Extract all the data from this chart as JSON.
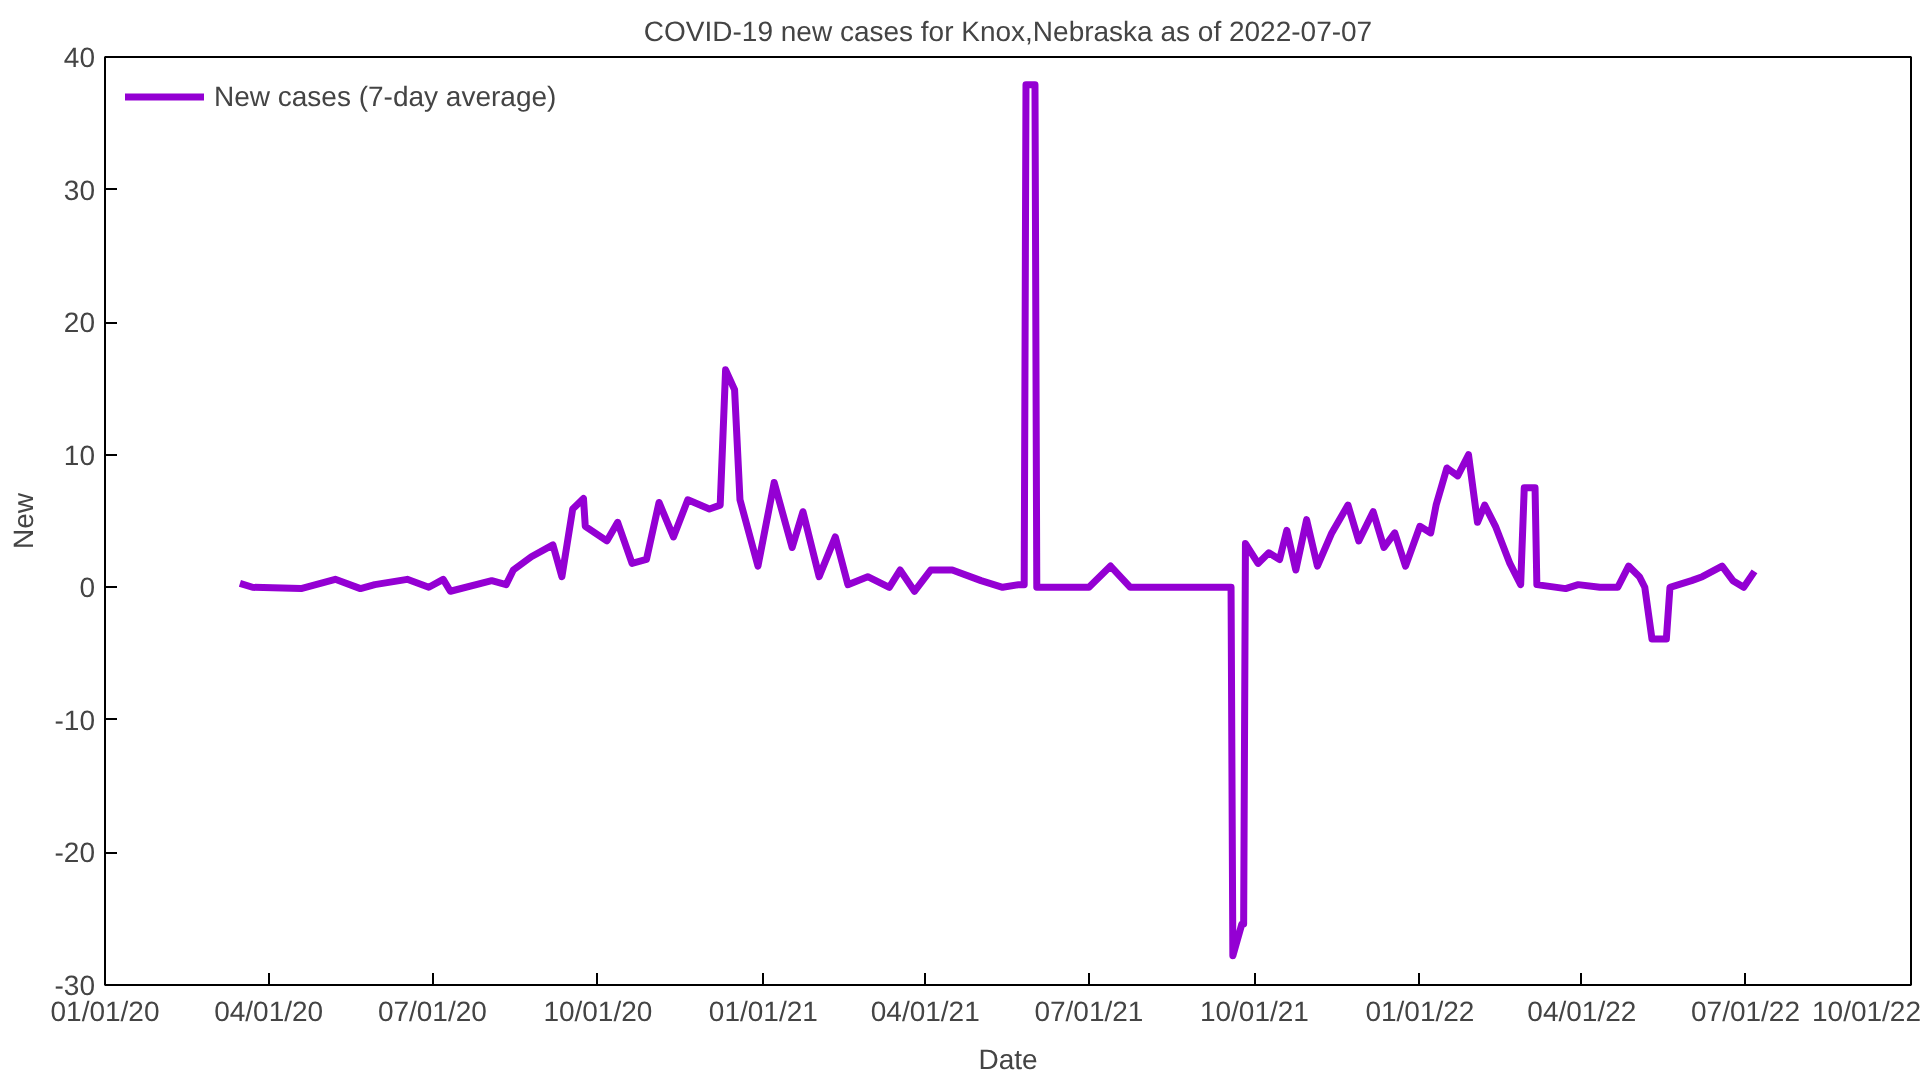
{
  "chart_data": {
    "type": "line",
    "title": "COVID-19 new cases for Knox,Nebraska as of 2022-07-07",
    "xlabel": "Date",
    "ylabel": "New",
    "xlim": [
      "2020-01-01",
      "2022-10-01"
    ],
    "ylim": [
      -30,
      40
    ],
    "xticks": [
      {
        "value": "2020-01-01",
        "label": "01/01/20"
      },
      {
        "value": "2020-04-01",
        "label": "04/01/20"
      },
      {
        "value": "2020-07-01",
        "label": "07/01/20"
      },
      {
        "value": "2020-10-01",
        "label": "10/01/20"
      },
      {
        "value": "2021-01-01",
        "label": "01/01/21"
      },
      {
        "value": "2021-04-01",
        "label": "04/01/21"
      },
      {
        "value": "2021-07-01",
        "label": "07/01/21"
      },
      {
        "value": "2021-10-01",
        "label": "10/01/21"
      },
      {
        "value": "2022-01-01",
        "label": "01/01/22"
      },
      {
        "value": "2022-04-01",
        "label": "04/01/22"
      },
      {
        "value": "2022-07-01",
        "label": "07/01/22"
      },
      {
        "value": "2022-10-01",
        "label": "10/01/22"
      }
    ],
    "yticks": [
      -30,
      -20,
      -10,
      0,
      10,
      20,
      30,
      40
    ],
    "grid": false,
    "legend": "top left",
    "marker": "none",
    "line_style": "solid",
    "x": [
      "2020-03-16",
      "2020-03-23",
      "2020-04-19",
      "2020-05-08",
      "2020-05-22",
      "2020-05-30",
      "2020-06-17",
      "2020-06-29",
      "2020-07-07",
      "2020-07-11",
      "2020-08-03",
      "2020-08-11",
      "2020-08-15",
      "2020-08-25",
      "2020-09-06",
      "2020-09-11",
      "2020-09-17",
      "2020-09-23",
      "2020-09-24",
      "2020-10-06",
      "2020-10-12",
      "2020-10-20",
      "2020-10-28",
      "2020-11-04",
      "2020-11-12",
      "2020-11-20",
      "2020-12-02",
      "2020-12-08",
      "2020-12-11",
      "2020-12-16",
      "2020-12-19",
      "2020-12-29",
      "2021-01-07",
      "2021-01-17",
      "2021-01-23",
      "2021-02-01",
      "2021-02-10",
      "2021-02-17",
      "2021-02-28",
      "2021-03-12",
      "2021-03-18",
      "2021-03-26",
      "2021-04-04",
      "2021-04-16",
      "2021-05-02",
      "2021-05-14",
      "2021-05-23",
      "2021-05-26",
      "2021-05-27",
      "2021-06-01",
      "2021-06-02",
      "2021-07-01",
      "2021-07-13",
      "2021-07-24",
      "2021-09-18",
      "2021-09-19",
      "2021-09-24",
      "2021-09-25",
      "2021-09-26",
      "2021-10-03",
      "2021-10-09",
      "2021-10-15",
      "2021-10-19",
      "2021-10-24",
      "2021-10-30",
      "2021-11-05",
      "2021-11-13",
      "2021-11-22",
      "2021-11-28",
      "2021-12-06",
      "2021-12-12",
      "2021-12-18",
      "2021-12-24",
      "2022-01-01",
      "2022-01-07",
      "2022-01-10",
      "2022-01-16",
      "2022-01-22",
      "2022-01-28",
      "2022-02-02",
      "2022-02-06",
      "2022-02-12",
      "2022-02-20",
      "2022-02-26",
      "2022-02-28",
      "2022-03-06",
      "2022-03-07",
      "2022-03-23",
      "2022-03-30",
      "2022-04-11",
      "2022-04-21",
      "2022-04-27",
      "2022-05-03",
      "2022-05-06",
      "2022-05-10",
      "2022-05-18",
      "2022-05-20",
      "2022-06-01",
      "2022-06-07",
      "2022-06-18",
      "2022-06-24",
      "2022-06-30",
      "2022-07-06"
    ],
    "series": [
      {
        "name": "New cases (7-day average)",
        "color": "#9400d3",
        "values": [
          0.3,
          0,
          -0.1,
          0.6,
          -0.1,
          0.2,
          0.6,
          0,
          0.6,
          -0.3,
          0.5,
          0.2,
          1.3,
          2.3,
          3.2,
          0.8,
          5.9,
          6.7,
          4.6,
          3.5,
          4.9,
          1.8,
          2.1,
          6.4,
          3.8,
          6.6,
          5.9,
          6.2,
          16.4,
          14.9,
          6.6,
          1.6,
          7.9,
          3.0,
          5.7,
          0.8,
          3.8,
          0.2,
          0.8,
          0,
          1.3,
          -0.3,
          1.3,
          1.3,
          0.5,
          0,
          0.2,
          0.2,
          37.9,
          37.9,
          0,
          0,
          1.6,
          0,
          0,
          -27.8,
          -25.4,
          -25.4,
          3.3,
          1.8,
          2.6,
          2.1,
          4.3,
          1.3,
          5.1,
          1.6,
          4.1,
          6.2,
          3.5,
          5.7,
          3.0,
          4.1,
          1.6,
          4.6,
          4.1,
          6.2,
          9.0,
          8.4,
          10.0,
          4.9,
          6.2,
          4.6,
          1.8,
          0.2,
          7.5,
          7.5,
          0.2,
          -0.1,
          0.2,
          0,
          0,
          1.6,
          0.8,
          0,
          -3.9,
          -3.9,
          0,
          0.5,
          0.8,
          1.6,
          0.5,
          0,
          1.2
        ]
      }
    ]
  }
}
